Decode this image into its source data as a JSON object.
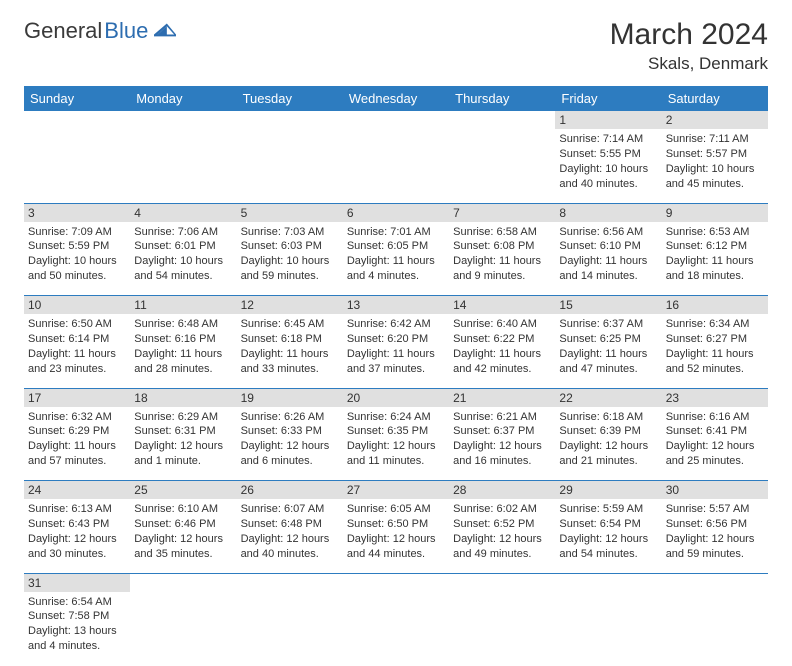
{
  "brand": {
    "part1": "General",
    "part2": "Blue"
  },
  "title": "March 2024",
  "location": "Skals, Denmark",
  "colors": {
    "header_bg": "#2d7cc0",
    "header_text": "#ffffff",
    "daynum_bg": "#e0e0e0",
    "border": "#2d7cc0",
    "text": "#333333",
    "brand_blue": "#2d6db0"
  },
  "days_of_week": [
    "Sunday",
    "Monday",
    "Tuesday",
    "Wednesday",
    "Thursday",
    "Friday",
    "Saturday"
  ],
  "weeks": [
    [
      null,
      null,
      null,
      null,
      null,
      {
        "n": "1",
        "sunrise": "Sunrise: 7:14 AM",
        "sunset": "Sunset: 5:55 PM",
        "daylight": "Daylight: 10 hours and 40 minutes."
      },
      {
        "n": "2",
        "sunrise": "Sunrise: 7:11 AM",
        "sunset": "Sunset: 5:57 PM",
        "daylight": "Daylight: 10 hours and 45 minutes."
      }
    ],
    [
      {
        "n": "3",
        "sunrise": "Sunrise: 7:09 AM",
        "sunset": "Sunset: 5:59 PM",
        "daylight": "Daylight: 10 hours and 50 minutes."
      },
      {
        "n": "4",
        "sunrise": "Sunrise: 7:06 AM",
        "sunset": "Sunset: 6:01 PM",
        "daylight": "Daylight: 10 hours and 54 minutes."
      },
      {
        "n": "5",
        "sunrise": "Sunrise: 7:03 AM",
        "sunset": "Sunset: 6:03 PM",
        "daylight": "Daylight: 10 hours and 59 minutes."
      },
      {
        "n": "6",
        "sunrise": "Sunrise: 7:01 AM",
        "sunset": "Sunset: 6:05 PM",
        "daylight": "Daylight: 11 hours and 4 minutes."
      },
      {
        "n": "7",
        "sunrise": "Sunrise: 6:58 AM",
        "sunset": "Sunset: 6:08 PM",
        "daylight": "Daylight: 11 hours and 9 minutes."
      },
      {
        "n": "8",
        "sunrise": "Sunrise: 6:56 AM",
        "sunset": "Sunset: 6:10 PM",
        "daylight": "Daylight: 11 hours and 14 minutes."
      },
      {
        "n": "9",
        "sunrise": "Sunrise: 6:53 AM",
        "sunset": "Sunset: 6:12 PM",
        "daylight": "Daylight: 11 hours and 18 minutes."
      }
    ],
    [
      {
        "n": "10",
        "sunrise": "Sunrise: 6:50 AM",
        "sunset": "Sunset: 6:14 PM",
        "daylight": "Daylight: 11 hours and 23 minutes."
      },
      {
        "n": "11",
        "sunrise": "Sunrise: 6:48 AM",
        "sunset": "Sunset: 6:16 PM",
        "daylight": "Daylight: 11 hours and 28 minutes."
      },
      {
        "n": "12",
        "sunrise": "Sunrise: 6:45 AM",
        "sunset": "Sunset: 6:18 PM",
        "daylight": "Daylight: 11 hours and 33 minutes."
      },
      {
        "n": "13",
        "sunrise": "Sunrise: 6:42 AM",
        "sunset": "Sunset: 6:20 PM",
        "daylight": "Daylight: 11 hours and 37 minutes."
      },
      {
        "n": "14",
        "sunrise": "Sunrise: 6:40 AM",
        "sunset": "Sunset: 6:22 PM",
        "daylight": "Daylight: 11 hours and 42 minutes."
      },
      {
        "n": "15",
        "sunrise": "Sunrise: 6:37 AM",
        "sunset": "Sunset: 6:25 PM",
        "daylight": "Daylight: 11 hours and 47 minutes."
      },
      {
        "n": "16",
        "sunrise": "Sunrise: 6:34 AM",
        "sunset": "Sunset: 6:27 PM",
        "daylight": "Daylight: 11 hours and 52 minutes."
      }
    ],
    [
      {
        "n": "17",
        "sunrise": "Sunrise: 6:32 AM",
        "sunset": "Sunset: 6:29 PM",
        "daylight": "Daylight: 11 hours and 57 minutes."
      },
      {
        "n": "18",
        "sunrise": "Sunrise: 6:29 AM",
        "sunset": "Sunset: 6:31 PM",
        "daylight": "Daylight: 12 hours and 1 minute."
      },
      {
        "n": "19",
        "sunrise": "Sunrise: 6:26 AM",
        "sunset": "Sunset: 6:33 PM",
        "daylight": "Daylight: 12 hours and 6 minutes."
      },
      {
        "n": "20",
        "sunrise": "Sunrise: 6:24 AM",
        "sunset": "Sunset: 6:35 PM",
        "daylight": "Daylight: 12 hours and 11 minutes."
      },
      {
        "n": "21",
        "sunrise": "Sunrise: 6:21 AM",
        "sunset": "Sunset: 6:37 PM",
        "daylight": "Daylight: 12 hours and 16 minutes."
      },
      {
        "n": "22",
        "sunrise": "Sunrise: 6:18 AM",
        "sunset": "Sunset: 6:39 PM",
        "daylight": "Daylight: 12 hours and 21 minutes."
      },
      {
        "n": "23",
        "sunrise": "Sunrise: 6:16 AM",
        "sunset": "Sunset: 6:41 PM",
        "daylight": "Daylight: 12 hours and 25 minutes."
      }
    ],
    [
      {
        "n": "24",
        "sunrise": "Sunrise: 6:13 AM",
        "sunset": "Sunset: 6:43 PM",
        "daylight": "Daylight: 12 hours and 30 minutes."
      },
      {
        "n": "25",
        "sunrise": "Sunrise: 6:10 AM",
        "sunset": "Sunset: 6:46 PM",
        "daylight": "Daylight: 12 hours and 35 minutes."
      },
      {
        "n": "26",
        "sunrise": "Sunrise: 6:07 AM",
        "sunset": "Sunset: 6:48 PM",
        "daylight": "Daylight: 12 hours and 40 minutes."
      },
      {
        "n": "27",
        "sunrise": "Sunrise: 6:05 AM",
        "sunset": "Sunset: 6:50 PM",
        "daylight": "Daylight: 12 hours and 44 minutes."
      },
      {
        "n": "28",
        "sunrise": "Sunrise: 6:02 AM",
        "sunset": "Sunset: 6:52 PM",
        "daylight": "Daylight: 12 hours and 49 minutes."
      },
      {
        "n": "29",
        "sunrise": "Sunrise: 5:59 AM",
        "sunset": "Sunset: 6:54 PM",
        "daylight": "Daylight: 12 hours and 54 minutes."
      },
      {
        "n": "30",
        "sunrise": "Sunrise: 5:57 AM",
        "sunset": "Sunset: 6:56 PM",
        "daylight": "Daylight: 12 hours and 59 minutes."
      }
    ],
    [
      {
        "n": "31",
        "sunrise": "Sunrise: 6:54 AM",
        "sunset": "Sunset: 7:58 PM",
        "daylight": "Daylight: 13 hours and 4 minutes."
      },
      null,
      null,
      null,
      null,
      null,
      null
    ]
  ]
}
